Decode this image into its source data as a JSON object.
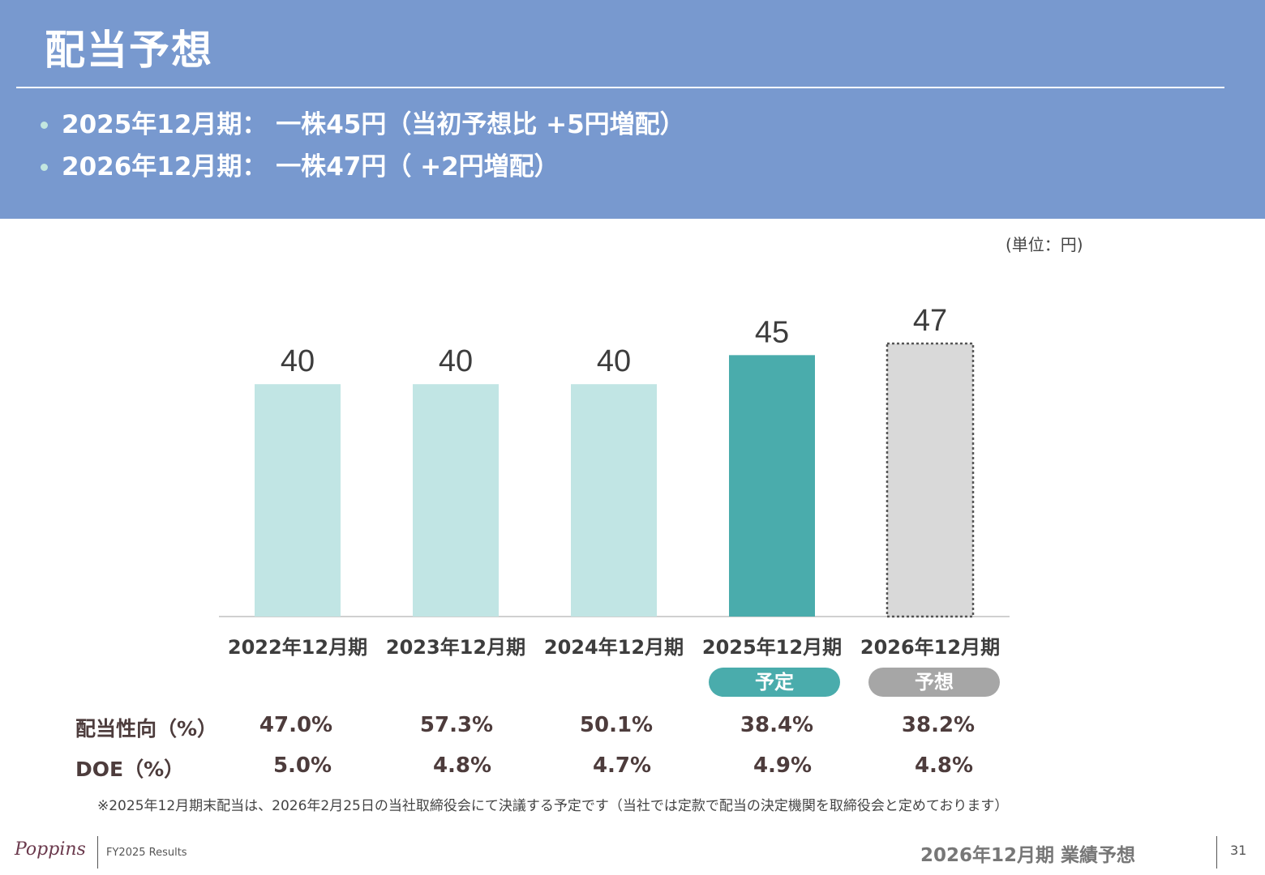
{
  "header": {
    "title": "配当予想",
    "bullets": [
      "2025年12月期： 一株45円（当初予想比 +5円増配）",
      "2026年12月期： 一株47円（ +2円増配）"
    ]
  },
  "unit_label": "(単位：円)",
  "chart_data": {
    "type": "bar",
    "categories": [
      "2022年12月期",
      "2023年12月期",
      "2024年12月期",
      "2025年12月期",
      "2026年12月期"
    ],
    "values": [
      40,
      40,
      40,
      45,
      47
    ],
    "ylim": [
      0,
      47
    ],
    "colors": [
      "#c1e5e4",
      "#c1e5e4",
      "#c1e5e4",
      "#4aacac",
      "#d9d9d9"
    ],
    "forecast_style": "dotted outline on last bar",
    "grid": false
  },
  "tags": {
    "planned": "予定",
    "forecast": "予想"
  },
  "metrics": {
    "payout_label": "配当性向（%）",
    "payout_values": [
      "47.0%",
      "57.3%",
      "50.1%",
      "38.4%",
      "38.2%"
    ],
    "doe_label": "DOE（%）",
    "doe_values": [
      "5.0%",
      "4.8%",
      "4.7%",
      "4.9%",
      "4.8%"
    ]
  },
  "note": "※2025年12月期末配当は、2026年2月25日の当社取締役会にて決議する予定です（当社では定款で配当の決定機関を取締役会と定めております）",
  "footer": {
    "logo": "Poppins",
    "results": "FY2025 Results",
    "section": "2026年12月期 業績予想",
    "page": "31"
  },
  "colors": {
    "header_bg": "#7899cf",
    "accent_teal": "#4aacac",
    "light_teal": "#c1e5e4",
    "forecast_gray": "#a6a6a6"
  }
}
